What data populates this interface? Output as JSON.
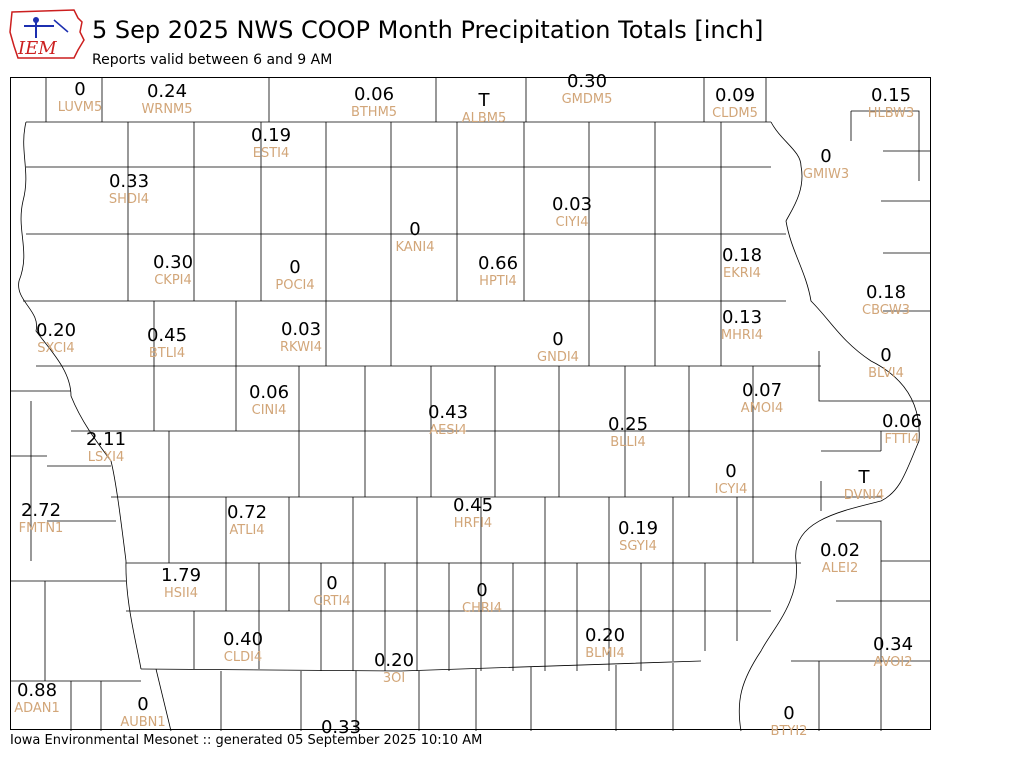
{
  "header": {
    "title": "5 Sep 2025 NWS COOP Month Precipitation Totals [inch]",
    "subtitle": "Reports valid between 6 and 9 AM"
  },
  "logo": {
    "text": "IEM",
    "icon": "iowa-outline-logo-icon"
  },
  "footer": {
    "text": "Iowa Environmental Mesonet :: generated 05 September 2025 10:10 AM"
  },
  "colors": {
    "value_text": "#000000",
    "station_id": "#d2a679",
    "county_line": "#000000",
    "logo_blue": "#1c2fb0",
    "logo_red": "#cc1f1f"
  },
  "stations": [
    {
      "id": "LUVM5",
      "value": "0"
    },
    {
      "id": "WRNM5",
      "value": "0.24"
    },
    {
      "id": "BTHM5",
      "value": "0.06"
    },
    {
      "id": "ALBM5",
      "value": "T"
    },
    {
      "id": "GMDM5",
      "value": "0.30"
    },
    {
      "id": "CLDM5",
      "value": "0.09"
    },
    {
      "id": "HLBW3",
      "value": "0.15"
    },
    {
      "id": "ESTI4",
      "value": "0.19"
    },
    {
      "id": "GMIW3",
      "value": "0"
    },
    {
      "id": "SHDI4",
      "value": "0.33"
    },
    {
      "id": "CIYI4",
      "value": "0.03"
    },
    {
      "id": "KANI4",
      "value": "0"
    },
    {
      "id": "EKRI4",
      "value": "0.18"
    },
    {
      "id": "CKPI4",
      "value": "0.30"
    },
    {
      "id": "POCI4",
      "value": "0"
    },
    {
      "id": "HPTI4",
      "value": "0.66"
    },
    {
      "id": "CBCW3",
      "value": "0.18"
    },
    {
      "id": "MHRI4",
      "value": "0.13"
    },
    {
      "id": "SXCI4",
      "value": "0.20"
    },
    {
      "id": "BTLI4",
      "value": "0.45"
    },
    {
      "id": "RKWI4",
      "value": "0.03"
    },
    {
      "id": "GNDI4",
      "value": "0"
    },
    {
      "id": "BLVI4",
      "value": "0"
    },
    {
      "id": "AMOI4",
      "value": "0.07"
    },
    {
      "id": "CINI4",
      "value": "0.06"
    },
    {
      "id": "AESI4",
      "value": "0.43"
    },
    {
      "id": "BLLI4",
      "value": "0.25"
    },
    {
      "id": "FTTI4",
      "value": "0.06"
    },
    {
      "id": "LSXI4",
      "value": "2.11"
    },
    {
      "id": "ICYI4",
      "value": "0"
    },
    {
      "id": "DVNI4",
      "value": "T"
    },
    {
      "id": "HRFI4",
      "value": "0.45"
    },
    {
      "id": "FMTN1",
      "value": "2.72"
    },
    {
      "id": "ATLI4",
      "value": "0.72"
    },
    {
      "id": "SGYI4",
      "value": "0.19"
    },
    {
      "id": "ALEI2",
      "value": "0.02"
    },
    {
      "id": "HSII4",
      "value": "1.79"
    },
    {
      "id": "CRTI4",
      "value": "0"
    },
    {
      "id": "CHRI4",
      "value": "0"
    },
    {
      "id": "CLDI4",
      "value": "0.40"
    },
    {
      "id": "BLMI4",
      "value": "0.20"
    },
    {
      "id": "AVOI2",
      "value": "0.34"
    },
    {
      "id": "3OI",
      "value": "0.20"
    },
    {
      "id": "ADAN1",
      "value": "0.88"
    },
    {
      "id": "AUBN1",
      "value": "0"
    },
    {
      "id": "",
      "value": "0.33"
    },
    {
      "id": "BTYI2",
      "value": "0"
    }
  ]
}
